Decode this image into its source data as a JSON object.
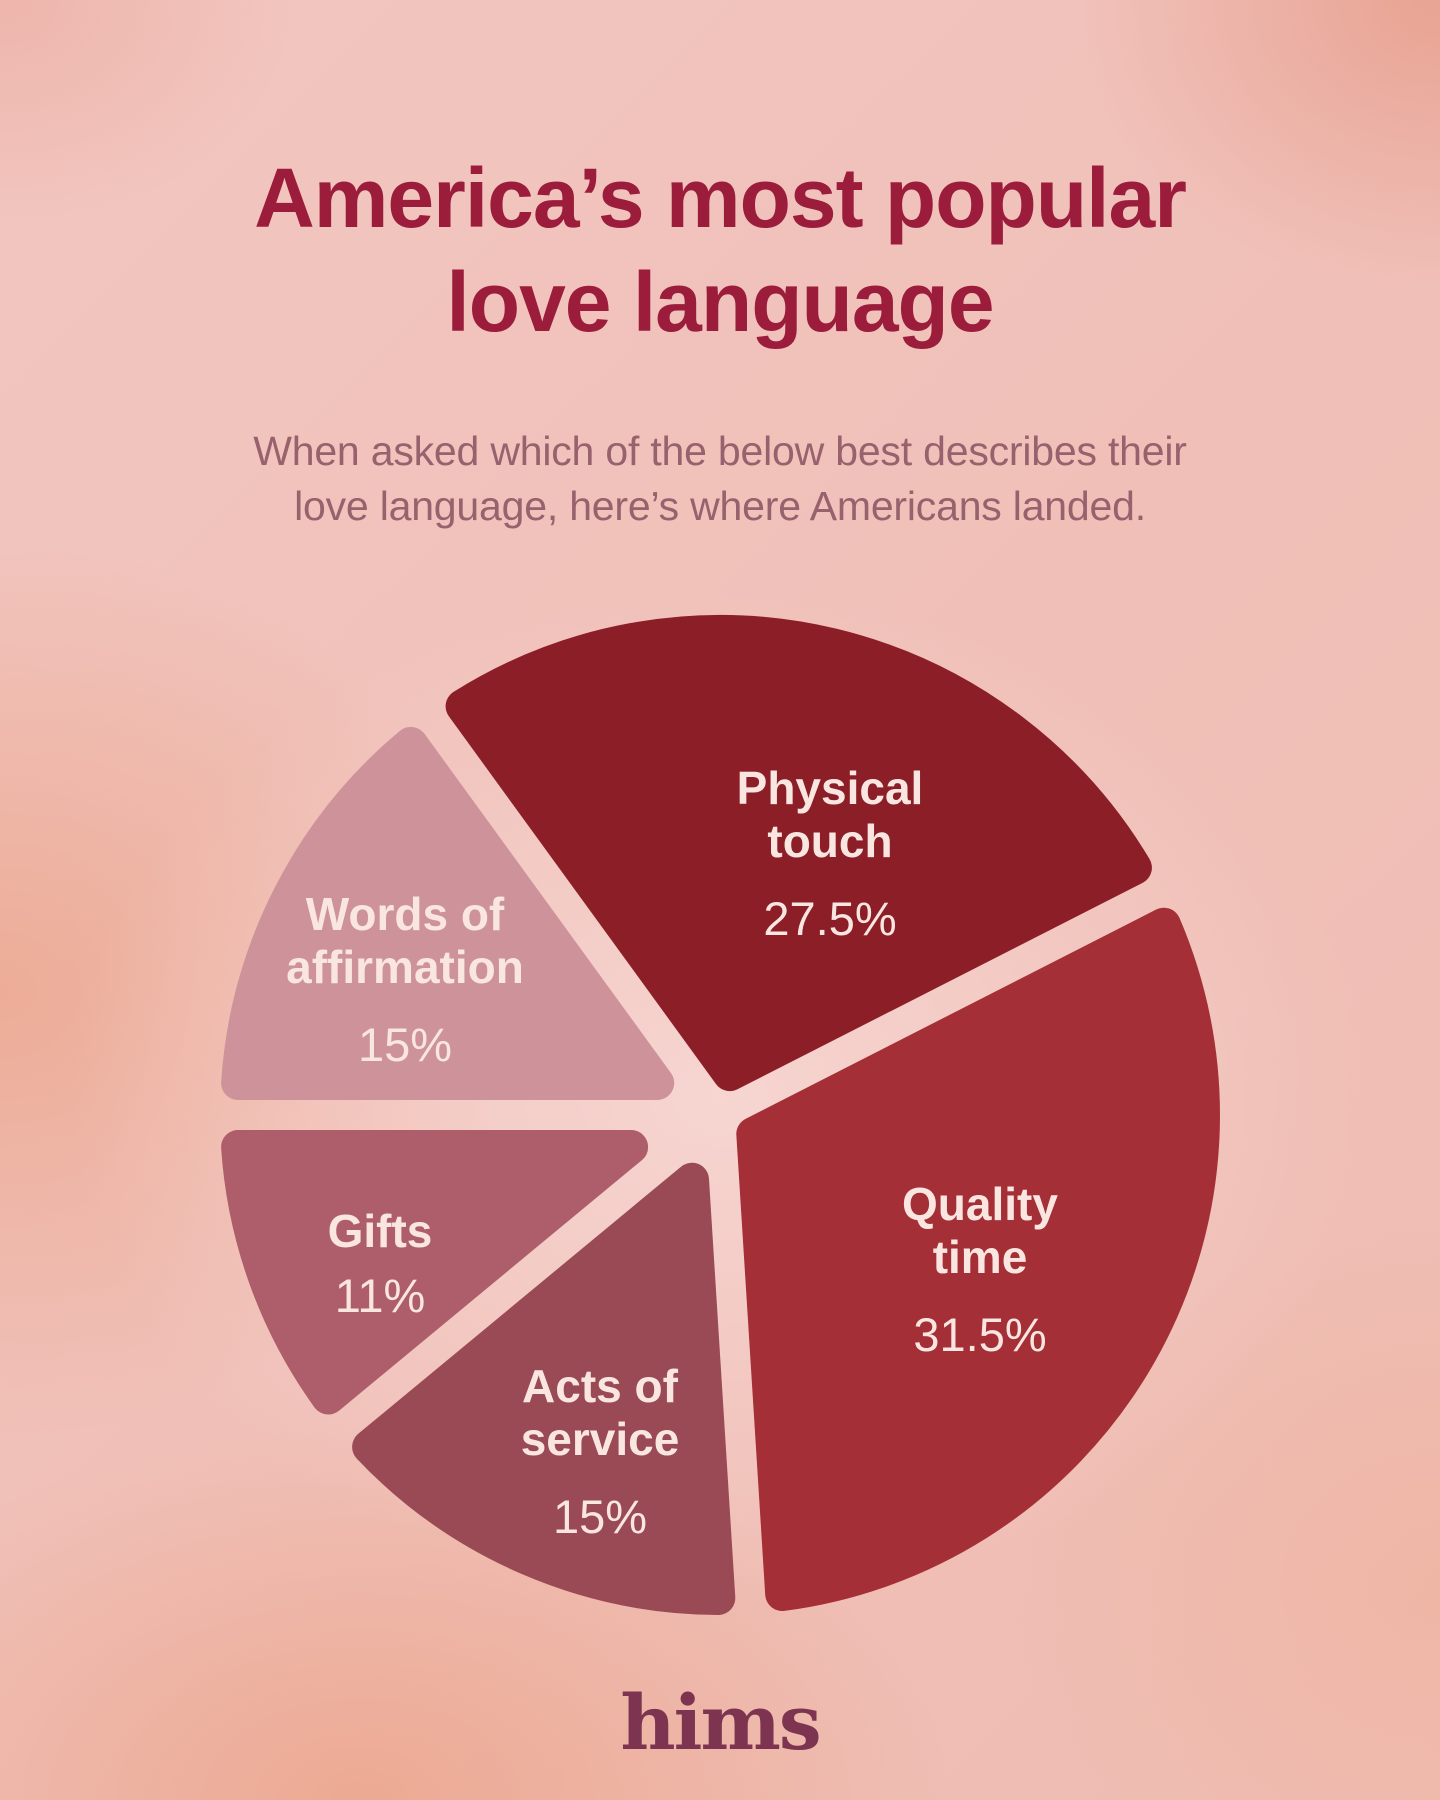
{
  "header": {
    "title_line1": "America’s most popular",
    "title_line2": "love language",
    "subtitle_line1": "When asked which of the below best describes their",
    "subtitle_line2": "love language, here’s where Americans landed."
  },
  "chart_data": {
    "type": "pie",
    "title": "America’s most popular love language",
    "unit": "%",
    "start_angle_deg": -36,
    "clockwise": true,
    "exploded": true,
    "legend": "none",
    "categories": [
      "Physical touch",
      "Quality time",
      "Acts of service",
      "Gifts",
      "Words of affirmation"
    ],
    "values": [
      27.5,
      31.5,
      15,
      11,
      15
    ],
    "slices": [
      {
        "name": "Physical touch",
        "value": 27.5,
        "pct_label": "27.5%",
        "color": "#8C1E27"
      },
      {
        "name": "Quality time",
        "value": 31.5,
        "pct_label": "31.5%",
        "color": "#A52F36"
      },
      {
        "name": "Acts of service",
        "value": 15,
        "pct_label": "15%",
        "color": "#9A4A54"
      },
      {
        "name": "Gifts",
        "value": 11,
        "pct_label": "11%",
        "color": "#AE5E6B"
      },
      {
        "name": "Words of affirmation",
        "value": 15,
        "pct_label": "15%",
        "color": "#CE929B"
      }
    ],
    "label_text_color": "#FAE6E1"
  },
  "footer": {
    "brand": "hims",
    "brand_color": "#7C3450"
  }
}
